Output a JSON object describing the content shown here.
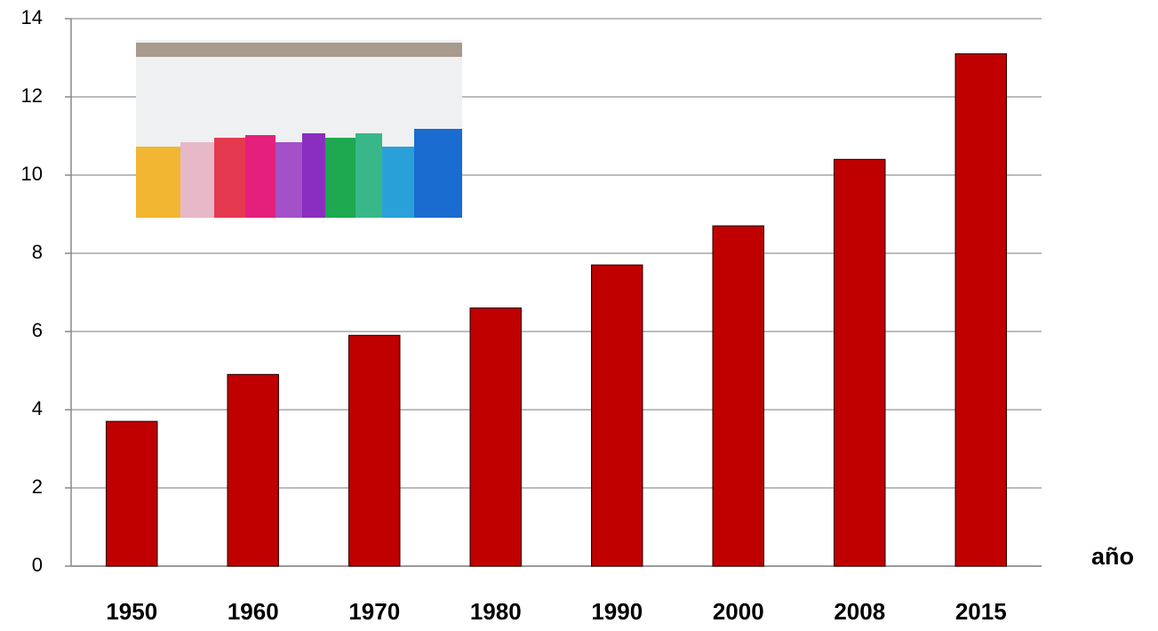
{
  "chart_data": {
    "type": "bar",
    "x_label": "año",
    "categories": [
      "1950",
      "1960",
      "1970",
      "1980",
      "1990",
      "2000",
      "2008",
      "2015"
    ],
    "values": [
      3.7,
      4.9,
      5.9,
      6.6,
      7.7,
      8.7,
      10.4,
      13.1
    ],
    "color": "#c00000",
    "ylim": [
      0,
      14
    ],
    "yticks": [
      0,
      2,
      4,
      6,
      8,
      10,
      12,
      14
    ],
    "grid": true
  }
}
